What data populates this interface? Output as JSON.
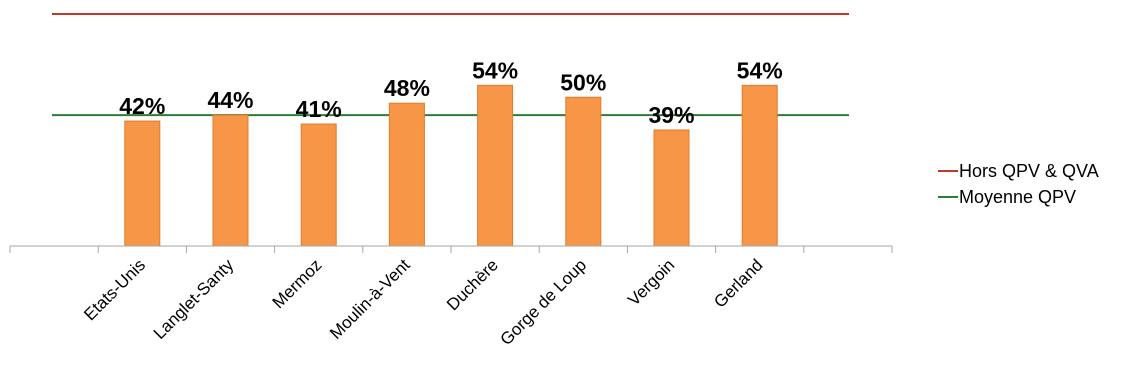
{
  "chart_data": {
    "type": "bar",
    "categories": [
      "Etats-Unis",
      "Langlet-Santy",
      "Mermoz",
      "Moulin-à-Vent",
      "Duchère",
      "Gorge de Loup",
      "Vergoin",
      "Gerland"
    ],
    "values": [
      42,
      44,
      41,
      48,
      54,
      50,
      39,
      54
    ],
    "data_labels": [
      "42%",
      "44%",
      "41%",
      "48%",
      "54%",
      "50%",
      "39%",
      "54%"
    ],
    "value_unit": "%",
    "ylim": [
      0,
      80
    ],
    "reference_lines": [
      {
        "name": "Hors QPV & QVA",
        "value": 78,
        "color": "#c0392b"
      },
      {
        "name": "Moyenne QPV",
        "value": 44,
        "color": "#2e7d32"
      }
    ],
    "bar_color": "#f79646",
    "bar_edge_color": "#e07b2a",
    "grid": false,
    "legend_position": "right",
    "title": "",
    "xlabel": "",
    "ylabel": ""
  }
}
